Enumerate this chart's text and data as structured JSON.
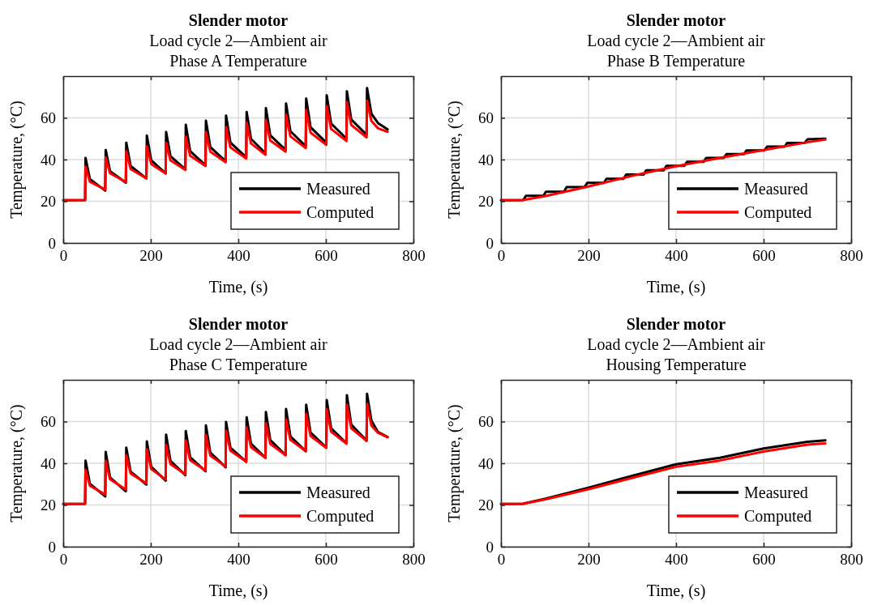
{
  "chart_data": [
    {
      "type": "line",
      "title": "Slender motor",
      "subtitle": "Load cycle 2—Ambient air\nPhase A Temperature",
      "xlabel": "Time, (s)",
      "ylabel": "Temperature, (°C)",
      "x": [
        0,
        50,
        51,
        61,
        96,
        97,
        107,
        143,
        144,
        154,
        190,
        191,
        201,
        234,
        235,
        245,
        279,
        280,
        290,
        325,
        326,
        336,
        371,
        372,
        382,
        418,
        419,
        429,
        462,
        463,
        473,
        508,
        509,
        519,
        554,
        555,
        565,
        601,
        602,
        612,
        647,
        648,
        658,
        693,
        694,
        704,
        719,
        741
      ],
      "series": [
        {
          "name": "Measured",
          "color": "#000000",
          "values": [
            20.5,
            20.6,
            40.8,
            30.6,
            25.1,
            44.6,
            34.4,
            28.9,
            48.1,
            36.9,
            30.9,
            51.5,
            39.7,
            33.4,
            53.2,
            41.6,
            35.3,
            56.7,
            44.0,
            37.2,
            58.6,
            46.0,
            39.2,
            61.1,
            48.1,
            41.1,
            62.8,
            49.9,
            43.0,
            64.7,
            51.6,
            44.6,
            66.9,
            53.6,
            46.4,
            69.2,
            55.5,
            48.1,
            70.8,
            57.3,
            50.0,
            72.7,
            59.2,
            51.9,
            74.3,
            62.0,
            57.5,
            54.5
          ]
        },
        {
          "name": "Computed",
          "color": "#ff0000",
          "values": [
            20.5,
            20.6,
            36.6,
            29.4,
            25.6,
            41.1,
            33.4,
            29.2,
            43.9,
            35.5,
            31.0,
            46.4,
            37.9,
            33.3,
            48.1,
            39.6,
            35.1,
            51.0,
            41.8,
            36.9,
            53.2,
            43.8,
            38.7,
            55.5,
            45.8,
            40.5,
            57.7,
            47.7,
            42.3,
            59.0,
            49.1,
            43.8,
            61.5,
            51.1,
            45.5,
            63.8,
            52.9,
            47.1,
            65.6,
            54.7,
            48.9,
            67.6,
            56.6,
            50.6,
            68.3,
            58.5,
            55.0,
            53.3
          ]
        }
      ],
      "xlim": [
        0,
        800
      ],
      "xticks": [
        0,
        200,
        400,
        600,
        800
      ],
      "ylim": [
        0,
        80
      ],
      "yticks": [
        0,
        20,
        40,
        60
      ],
      "grid": true,
      "legend": "bottom right",
      "line_style": "solid"
    },
    {
      "type": "line",
      "title": "Slender motor",
      "subtitle": "Load cycle 2—Ambient air\nPhase B Temperature",
      "xlabel": "Time, (s)",
      "ylabel": "Temperature, (°C)",
      "series": [
        {
          "name": "Measured",
          "color": "#000000",
          "x": [
            0,
            51,
            57,
            97,
            103,
            144,
            150,
            191,
            197,
            235,
            241,
            280,
            286,
            326,
            332,
            372,
            378,
            419,
            425,
            463,
            469,
            509,
            515,
            555,
            561,
            602,
            608,
            648,
            654,
            694,
            700,
            741
          ],
          "values": [
            20.5,
            20.6,
            22.6,
            22.6,
            24.6,
            24.6,
            26.8,
            26.8,
            28.8,
            28.8,
            30.8,
            30.8,
            32.8,
            32.8,
            34.9,
            34.9,
            37.0,
            37.0,
            38.9,
            38.9,
            40.8,
            40.8,
            42.6,
            42.6,
            44.4,
            44.4,
            46.2,
            46.2,
            48.0,
            48.0,
            49.7,
            50.0
          ]
        },
        {
          "name": "Computed",
          "color": "#ff0000",
          "x": [
            0,
            50,
            100,
            200,
            300,
            400,
            500,
            600,
            700,
            741
          ],
          "values": [
            20.5,
            20.6,
            22.4,
            27.1,
            32.2,
            36.8,
            40.8,
            44.6,
            48.3,
            49.6
          ]
        }
      ],
      "xlim": [
        0,
        800
      ],
      "xticks": [
        0,
        200,
        400,
        600,
        800
      ],
      "ylim": [
        0,
        80
      ],
      "yticks": [
        0,
        20,
        40,
        60
      ],
      "grid": true,
      "legend": "bottom right",
      "line_style": "solid"
    },
    {
      "type": "line",
      "title": "Slender motor",
      "subtitle": "Load cycle 2—Ambient air\nPhase C Temperature",
      "xlabel": "Time, (s)",
      "ylabel": "Temperature, (°C)",
      "x": [
        0,
        50,
        51,
        61,
        96,
        97,
        107,
        143,
        144,
        154,
        190,
        191,
        201,
        234,
        235,
        245,
        279,
        280,
        290,
        325,
        326,
        336,
        371,
        372,
        382,
        418,
        419,
        429,
        462,
        463,
        473,
        508,
        509,
        519,
        554,
        555,
        565,
        601,
        602,
        612,
        647,
        648,
        658,
        693,
        694,
        704,
        719,
        741
      ],
      "series": [
        {
          "name": "Measured",
          "color": "#000000",
          "values": [
            20.5,
            20.6,
            41.3,
            30.1,
            24.1,
            45.4,
            33.2,
            26.6,
            47.5,
            36.0,
            29.8,
            50.5,
            38.3,
            31.7,
            53.7,
            41.1,
            34.3,
            55.4,
            42.9,
            36.2,
            58.2,
            45.1,
            38.1,
            59.8,
            47.4,
            40.7,
            62.0,
            49.4,
            42.6,
            64.6,
            51.1,
            43.9,
            66.0,
            52.9,
            45.8,
            68.1,
            54.7,
            47.5,
            70.3,
            56.8,
            49.6,
            72.6,
            58.5,
            50.9,
            73.3,
            60.5,
            55.0,
            52.6
          ]
        },
        {
          "name": "Computed",
          "color": "#ff0000",
          "values": [
            20.5,
            20.6,
            36.9,
            29.2,
            25.0,
            41.3,
            32.3,
            27.4,
            43.9,
            35.1,
            30.4,
            46.7,
            37.3,
            32.2,
            48.7,
            39.6,
            34.7,
            50.9,
            41.5,
            36.5,
            53.5,
            43.7,
            38.4,
            55.6,
            46.0,
            40.8,
            57.3,
            47.7,
            42.6,
            59.2,
            49.3,
            43.9,
            61.1,
            51.2,
            45.8,
            63.7,
            53.1,
            47.4,
            65.8,
            55.1,
            49.4,
            68.1,
            56.8,
            50.7,
            68.5,
            58.1,
            54.6,
            52.5
          ]
        }
      ],
      "xlim": [
        0,
        800
      ],
      "xticks": [
        0,
        200,
        400,
        600,
        800
      ],
      "ylim": [
        0,
        80
      ],
      "yticks": [
        0,
        20,
        40,
        60
      ],
      "grid": true,
      "legend": "bottom right",
      "line_style": "solid"
    },
    {
      "type": "line",
      "title": "Slender motor",
      "subtitle": "Load cycle 2—Ambient air\nHousing Temperature",
      "xlabel": "Time, (s)",
      "ylabel": "Temperature, (°C)",
      "x": [
        0,
        50,
        100,
        200,
        300,
        400,
        500,
        600,
        700,
        741
      ],
      "series": [
        {
          "name": "Measured",
          "color": "#000000",
          "values": [
            20.5,
            20.6,
            22.9,
            28.3,
            34.0,
            39.5,
            42.6,
            47.1,
            50.3,
            51.0
          ]
        },
        {
          "name": "Computed",
          "color": "#ff0000",
          "values": [
            20.5,
            20.6,
            22.6,
            27.6,
            33.0,
            38.3,
            41.3,
            45.6,
            48.9,
            49.5
          ]
        }
      ],
      "xlim": [
        0,
        800
      ],
      "xticks": [
        0,
        200,
        400,
        600,
        800
      ],
      "ylim": [
        0,
        80
      ],
      "yticks": [
        0,
        20,
        40,
        60
      ],
      "grid": true,
      "legend": "bottom right",
      "line_style": "solid"
    }
  ]
}
